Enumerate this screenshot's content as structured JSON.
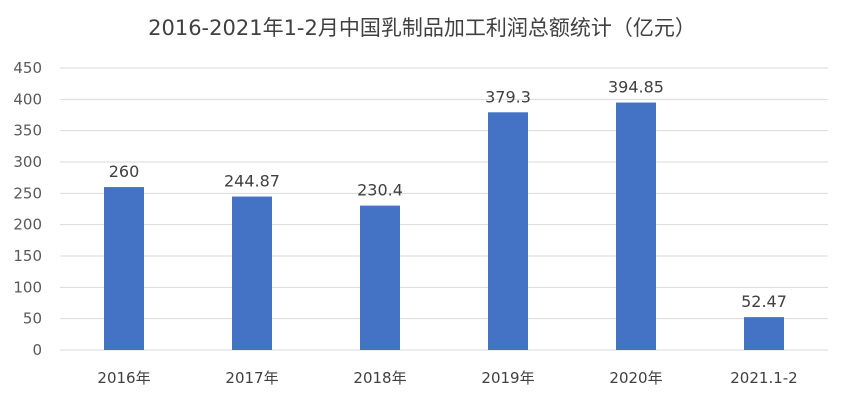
{
  "chart_data": {
    "type": "bar",
    "title": "2016-2021年1-2月中国乳制品加工利润总额统计（亿元）",
    "categories": [
      "2016年",
      "2017年",
      "2018年",
      "2019年",
      "2020年",
      "2021.1-2"
    ],
    "values": [
      260,
      244.87,
      230.4,
      379.3,
      394.85,
      52.47
    ],
    "data_labels": [
      "260",
      "244.87",
      "230.4",
      "379.3",
      "394.85",
      "52.47"
    ],
    "ylim": [
      0,
      450
    ],
    "yticks": [
      0,
      50,
      100,
      150,
      200,
      250,
      300,
      350,
      400,
      450
    ],
    "grid": true,
    "legend": "none",
    "bar_color": "#4472C4",
    "grid_color": "#D9D9D9"
  }
}
